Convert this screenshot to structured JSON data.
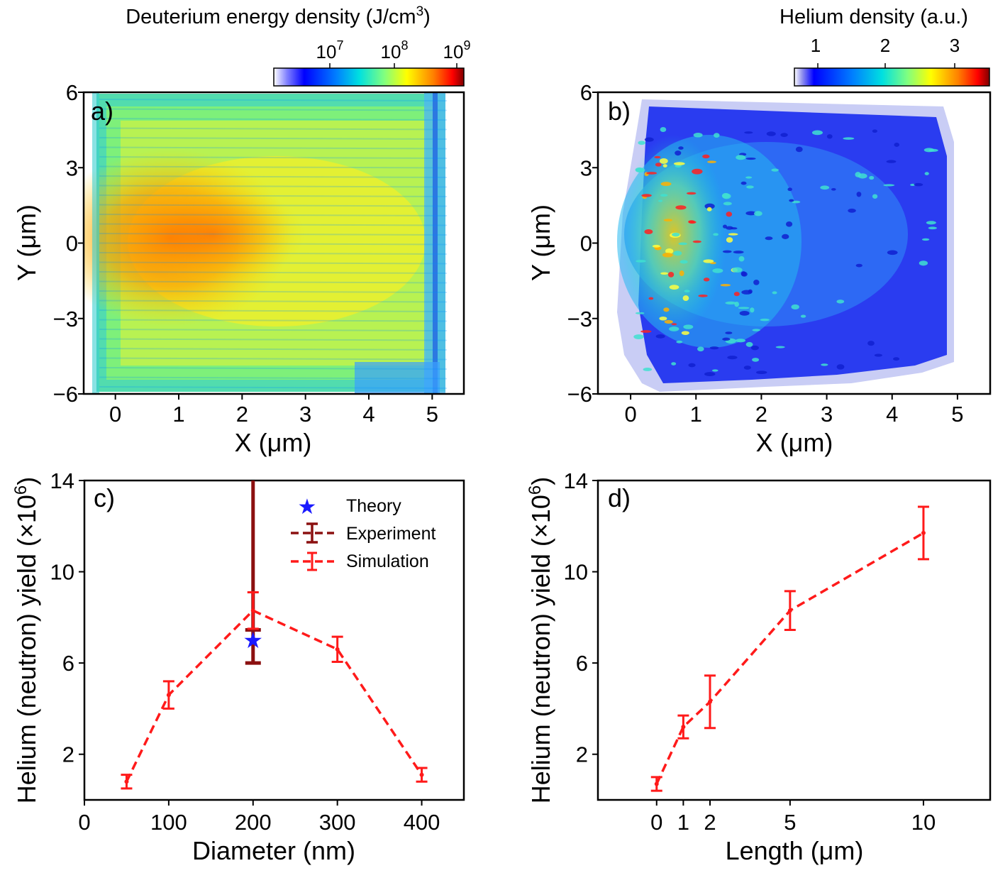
{
  "panels": {
    "a": {
      "label": "a)",
      "colorbar_title": "Deuterium energy density (J/cm",
      "colorbar_title_sup": "3",
      "colorbar_title_end": ")",
      "colorbar_ticks": [
        {
          "base": "10",
          "exp": "7",
          "value": 10000000
        },
        {
          "base": "10",
          "exp": "8",
          "value": 100000000
        },
        {
          "base": "10",
          "exp": "9",
          "value": 1000000000
        }
      ],
      "xlabel": "X (μm)",
      "ylabel": "Y (μm)",
      "xticks": [
        "0",
        "1",
        "2",
        "3",
        "4",
        "5"
      ],
      "yticks": [
        "6",
        "3",
        "0",
        "−3",
        "−6"
      ],
      "xlim": [
        -0.5,
        5.5
      ],
      "ylim": [
        -6,
        6
      ],
      "scale": "log"
    },
    "b": {
      "label": "b)",
      "colorbar_title": "Helium density (a.u.)",
      "colorbar_ticks": [
        "1",
        "2",
        "3"
      ],
      "xlabel": "X (μm)",
      "ylabel": "Y (μm)",
      "xticks": [
        "0",
        "1",
        "2",
        "3",
        "4",
        "5"
      ],
      "yticks": [
        "6",
        "3",
        "0",
        "−3",
        "−6"
      ],
      "xlim": [
        -0.5,
        5.5
      ],
      "ylim": [
        -6,
        6
      ]
    },
    "c": {
      "label": "c)",
      "xlabel": "Diameter (nm)",
      "ylabel": "Helium (neutron) yield (×10",
      "ylabel_sup": "6",
      "ylabel_end": ")",
      "xticks": [
        "0",
        "100",
        "200",
        "300",
        "400"
      ],
      "yticks": [
        "14",
        "10",
        "6",
        "2"
      ]
    },
    "d": {
      "label": "d)",
      "xlabel": "Length (μm)",
      "ylabel": "Helium (neutron) yield (×10",
      "ylabel_sup": "6",
      "ylabel_end": ")",
      "xticks": [
        "0",
        "1",
        "2",
        "5",
        "10"
      ],
      "yticks": [
        "14",
        "10",
        "6",
        "2"
      ]
    }
  },
  "legend": {
    "theory": "Theory",
    "experiment": "Experiment",
    "simulation": "Simulation"
  },
  "colors": {
    "simulation": "#ff1a1a",
    "experiment": "#8b1010",
    "theory": "#1a1aff"
  },
  "chart_data": [
    {
      "type": "heatmap",
      "panel": "a",
      "quantity": "Deuterium energy density (J/cm3)",
      "colorscale": "jet",
      "color_range": [
        1000000,
        1000000000
      ],
      "note_values": "filled region x≈0.1–5.2 μm, y≈-5.8–6 μm; maximum (~1e8–1e9) near x≈0.3–1.5 μm, y≈-3–3 μm; background ~1e7"
    },
    {
      "type": "heatmap",
      "panel": "b",
      "quantity": "Helium density (a.u.)",
      "colorscale": "jet",
      "color_range": [
        0.6,
        3.5
      ],
      "note_values": "speckled region x≈0.2–5 μm; highest density (~3) near x≈0.3–1.3 μm, y≈-3–3 μm; elsewhere ~1–1.5"
    },
    {
      "type": "line",
      "panel": "c",
      "xlim": [
        0,
        450
      ],
      "ylim": [
        0,
        14
      ],
      "series": [
        {
          "name": "Simulation",
          "style": "dashed",
          "x": [
            50,
            100,
            200,
            300,
            400
          ],
          "y": [
            0.8,
            4.6,
            8.3,
            6.6,
            1.1
          ],
          "err": [
            0.3,
            0.6,
            0.8,
            0.55,
            0.3
          ]
        },
        {
          "name": "Experiment",
          "style": "errorbar",
          "x": [
            200
          ],
          "y": [
            7.0
          ],
          "err_low": [
            6.0
          ],
          "err_high": [
            14.0
          ]
        },
        {
          "name": "Theory",
          "style": "star",
          "x": [
            200
          ],
          "y": [
            7.0
          ]
        }
      ]
    },
    {
      "type": "line",
      "panel": "d",
      "xlim": [
        -2.2,
        12.5
      ],
      "ylim": [
        0,
        14
      ],
      "series": [
        {
          "style": "dashed",
          "x": [
            0,
            1,
            2,
            5,
            10
          ],
          "y": [
            0.7,
            3.2,
            4.3,
            8.3,
            11.7
          ],
          "err": [
            0.3,
            0.5,
            1.15,
            0.85,
            1.15
          ]
        }
      ]
    }
  ]
}
